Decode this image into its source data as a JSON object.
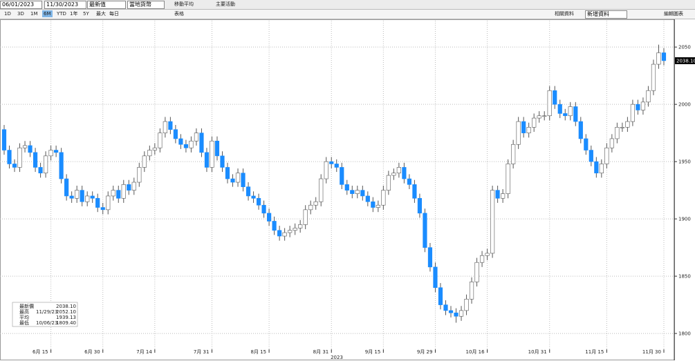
{
  "ui": {
    "start_date": "06/01/2023",
    "end_date": "11/30/2023",
    "field": "最新值",
    "currency": "當地貨幣",
    "moving_average": "移動平均",
    "key_events": "主要活動",
    "periods": [
      "1D",
      "3D",
      "1M",
      "6M",
      "YTD",
      "1年",
      "5Y",
      "最大",
      "每日"
    ],
    "table_button": "表格",
    "related": "相關資料",
    "add_data": "新增資料",
    "edit_chart": "編輯圖表"
  },
  "chart_data": {
    "type": "candlestick",
    "up_color": "#ffffff",
    "down_color": "#1a8cff",
    "grid": true,
    "ylim": [
      1785,
      2073
    ],
    "yticks": [
      1800,
      1850,
      1900,
      1950,
      2000,
      2050
    ],
    "xlim": [
      -0.8,
      129
    ],
    "xticks": [
      {
        "value": 9,
        "label": "6月 15"
      },
      {
        "value": 19,
        "label": "6月 30"
      },
      {
        "value": 29,
        "label": "7月 14"
      },
      {
        "value": 40,
        "label": "7月 31"
      },
      {
        "value": 51,
        "label": "8月 15"
      },
      {
        "value": 63,
        "label": "8月 31"
      },
      {
        "value": 73,
        "label": "9月 15"
      },
      {
        "value": 83,
        "label": "9月 29"
      },
      {
        "value": 93,
        "label": "10月 16"
      },
      {
        "value": 105,
        "label": "10月 31"
      },
      {
        "value": 116,
        "label": "11月 15"
      },
      {
        "value": 127,
        "label": "11月 30"
      }
    ],
    "year_label": "2023",
    "last_price_label": "2038.10",
    "legend": [
      {
        "label": "最新價",
        "date": "",
        "value": "2038.10"
      },
      {
        "label": "最高",
        "date": "11/29/23",
        "value": "2052.10"
      },
      {
        "label": "平均",
        "date": "",
        "value": "1939.13"
      },
      {
        "label": "最低",
        "date": "10/06/23",
        "value": "1809.40"
      }
    ],
    "open": [
      1978,
      1960,
      1948,
      1945,
      1962,
      1964,
      1958,
      1945,
      1940,
      1955,
      1960,
      1958,
      1935,
      1920,
      1918,
      1925,
      1915,
      1920,
      1918,
      1910,
      1908,
      1920,
      1925,
      1918,
      1930,
      1925,
      1932,
      1945,
      1955,
      1960,
      1962,
      1975,
      1985,
      1978,
      1970,
      1965,
      1962,
      1968,
      1975,
      1958,
      1945,
      1968,
      1955,
      1945,
      1935,
      1932,
      1940,
      1928,
      1920,
      1918,
      1912,
      1905,
      1898,
      1890,
      1885,
      1888,
      1890,
      1892,
      1895,
      1908,
      1912,
      1915,
      1935,
      1950,
      1948,
      1945,
      1930,
      1925,
      1922,
      1925,
      1920,
      1915,
      1910,
      1912,
      1925,
      1938,
      1940,
      1945,
      1935,
      1930,
      1918,
      1905,
      1875,
      1858,
      1840,
      1825,
      1820,
      1818,
      1815,
      1820,
      1830,
      1845,
      1862,
      1868,
      1870,
      1925,
      1918,
      1922,
      1948,
      1965,
      1985,
      1975,
      1980,
      1988,
      1990,
      1990,
      2012,
      2000,
      1992,
      1990,
      1998,
      1985,
      1970,
      1960,
      1950,
      1940,
      1948,
      1962,
      1970,
      1980,
      1980,
      1985,
      2000,
      1995,
      2002,
      2012,
      2035,
      2045
    ],
    "high": [
      1982,
      1964,
      1952,
      1966,
      1968,
      1968,
      1962,
      1949,
      1959,
      1964,
      1964,
      1962,
      1939,
      1924,
      1929,
      1929,
      1924,
      1924,
      1922,
      1914,
      1924,
      1929,
      1929,
      1934,
      1934,
      1936,
      1949,
      1959,
      1964,
      1966,
      1979,
      1989,
      1989,
      1982,
      1974,
      1969,
      1972,
      1979,
      1979,
      1962,
      1972,
      1972,
      1959,
      1949,
      1939,
      1944,
      1944,
      1932,
      1924,
      1922,
      1916,
      1909,
      1902,
      1894,
      1892,
      1894,
      1896,
      1899,
      1912,
      1916,
      1919,
      1939,
      1954,
      1954,
      1952,
      1949,
      1934,
      1929,
      1929,
      1929,
      1924,
      1919,
      1916,
      1929,
      1942,
      1944,
      1949,
      1949,
      1939,
      1934,
      1922,
      1909,
      1879,
      1862,
      1844,
      1829,
      1824,
      1822,
      1824,
      1834,
      1849,
      1866,
      1872,
      1874,
      1929,
      1929,
      1926,
      1952,
      1969,
      1989,
      1989,
      1984,
      1992,
      1994,
      1994,
      2016,
      2016,
      2004,
      1996,
      2002,
      2002,
      1989,
      1974,
      1964,
      1954,
      1952,
      1966,
      1974,
      1984,
      1984,
      1989,
      2004,
      2004,
      2006,
      2016,
      2039,
      2052.1,
      2049
    ],
    "low": [
      1956,
      1944,
      1941,
      1941,
      1958,
      1954,
      1941,
      1936,
      1936,
      1951,
      1954,
      1931,
      1916,
      1914,
      1914,
      1911,
      1911,
      1914,
      1906,
      1904,
      1904,
      1916,
      1914,
      1914,
      1921,
      1921,
      1928,
      1941,
      1951,
      1956,
      1958,
      1971,
      1974,
      1966,
      1961,
      1958,
      1958,
      1964,
      1954,
      1941,
      1941,
      1951,
      1941,
      1931,
      1928,
      1928,
      1924,
      1916,
      1914,
      1908,
      1901,
      1894,
      1886,
      1881,
      1881,
      1884,
      1886,
      1888,
      1891,
      1904,
      1908,
      1911,
      1931,
      1944,
      1941,
      1926,
      1921,
      1918,
      1918,
      1916,
      1911,
      1906,
      1906,
      1908,
      1921,
      1934,
      1936,
      1931,
      1926,
      1914,
      1901,
      1871,
      1854,
      1836,
      1821,
      1816,
      1814,
      1809.4,
      1811,
      1816,
      1826,
      1841,
      1858,
      1864,
      1866,
      1914,
      1914,
      1918,
      1944,
      1961,
      1971,
      1971,
      1976,
      1984,
      1986,
      1986,
      1996,
      1988,
      1986,
      1986,
      1981,
      1966,
      1956,
      1946,
      1936,
      1936,
      1944,
      1958,
      1966,
      1976,
      1976,
      1981,
      1991,
      1991,
      1998,
      2008,
      2031,
      2034
    ],
    "close": [
      1960,
      1948,
      1945,
      1962,
      1964,
      1958,
      1945,
      1940,
      1955,
      1960,
      1958,
      1935,
      1920,
      1918,
      1925,
      1915,
      1920,
      1918,
      1910,
      1908,
      1920,
      1925,
      1918,
      1930,
      1925,
      1932,
      1945,
      1955,
      1960,
      1962,
      1975,
      1985,
      1978,
      1970,
      1965,
      1962,
      1968,
      1975,
      1958,
      1945,
      1968,
      1955,
      1945,
      1935,
      1932,
      1940,
      1928,
      1920,
      1918,
      1912,
      1905,
      1898,
      1890,
      1885,
      1888,
      1890,
      1892,
      1895,
      1908,
      1912,
      1915,
      1935,
      1950,
      1948,
      1945,
      1930,
      1925,
      1922,
      1925,
      1920,
      1915,
      1910,
      1912,
      1925,
      1938,
      1940,
      1945,
      1935,
      1930,
      1918,
      1905,
      1875,
      1858,
      1840,
      1825,
      1820,
      1818,
      1815,
      1820,
      1830,
      1845,
      1862,
      1868,
      1870,
      1925,
      1918,
      1922,
      1948,
      1965,
      1985,
      1975,
      1980,
      1988,
      1990,
      1990,
      2012,
      2000,
      1992,
      1990,
      1998,
      1985,
      1970,
      1960,
      1950,
      1940,
      1948,
      1962,
      1970,
      1980,
      1980,
      1985,
      2000,
      1995,
      2002,
      2012,
      2035,
      2045,
      2038.1
    ]
  }
}
